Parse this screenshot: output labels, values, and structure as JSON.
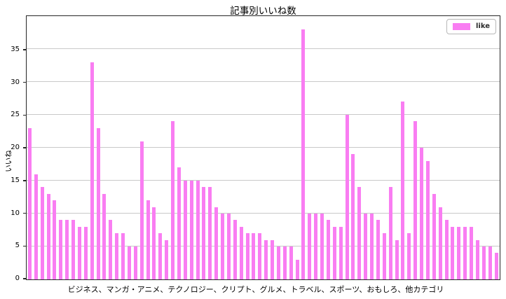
{
  "chart_data": {
    "type": "bar",
    "title": "記事別いいね数",
    "ylabel": "いいね",
    "xlabel": "ビジネス、マンガ・アニメ、テクノロジー、クリプト、グルメ、トラベル、スポーツ、おもしろ、他カテゴリ",
    "legend": {
      "position": "upper right",
      "entries": [
        "like"
      ]
    },
    "series": [
      {
        "name": "like",
        "values": [
          23,
          16,
          14,
          13,
          12,
          9,
          9,
          9,
          8,
          8,
          33,
          23,
          13,
          9,
          7,
          7,
          5,
          5,
          21,
          12,
          11,
          7,
          6,
          24,
          17,
          15,
          15,
          15,
          14,
          14,
          11,
          10,
          10,
          9,
          8,
          7,
          7,
          7,
          6,
          6,
          5,
          5,
          5,
          3,
          38,
          10,
          10,
          10,
          9,
          8,
          8,
          25,
          19,
          14,
          10,
          10,
          9,
          7,
          14,
          6,
          27,
          7,
          24,
          20,
          18,
          13,
          11,
          9,
          8,
          8,
          8,
          8,
          6,
          5,
          5,
          4
        ]
      }
    ],
    "n_bars": 76,
    "ylim": [
      0,
      40
    ],
    "yticks": [
      0,
      5,
      10,
      15,
      20,
      25,
      30,
      35
    ],
    "grid": "horizontal",
    "colors": {
      "bar": "#f97df2",
      "gridline": "#c9c9c9",
      "frame": "#262626",
      "legend_border": "#b8b8b8",
      "background": "#ffffff"
    }
  }
}
